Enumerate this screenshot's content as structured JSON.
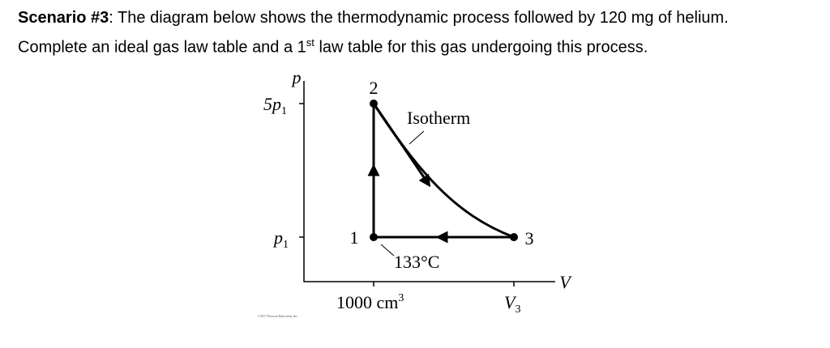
{
  "text": {
    "line1": {
      "bold": "Scenario #3",
      "rest": ": The diagram below shows the thermodynamic process followed by 120 mg of helium."
    },
    "line2": {
      "before": "Complete an ideal gas law table and a 1",
      "sup": "st",
      "after": " law table for this gas undergoing this process."
    }
  },
  "diagram": {
    "y_axis_label": "p",
    "x_axis_label": "V",
    "y_ticks": [
      {
        "text": "5p",
        "sub": "1"
      },
      {
        "text": "p",
        "sub": "1"
      }
    ],
    "x_ticks": [
      {
        "text": "1000 cm",
        "sup": "3"
      },
      {
        "text": "V",
        "sub": "3"
      }
    ],
    "points": [
      "1",
      "2",
      "3"
    ],
    "annotations": [
      "Isotherm",
      "133°C"
    ],
    "credit": "©2017 Pearson Education, Inc."
  }
}
